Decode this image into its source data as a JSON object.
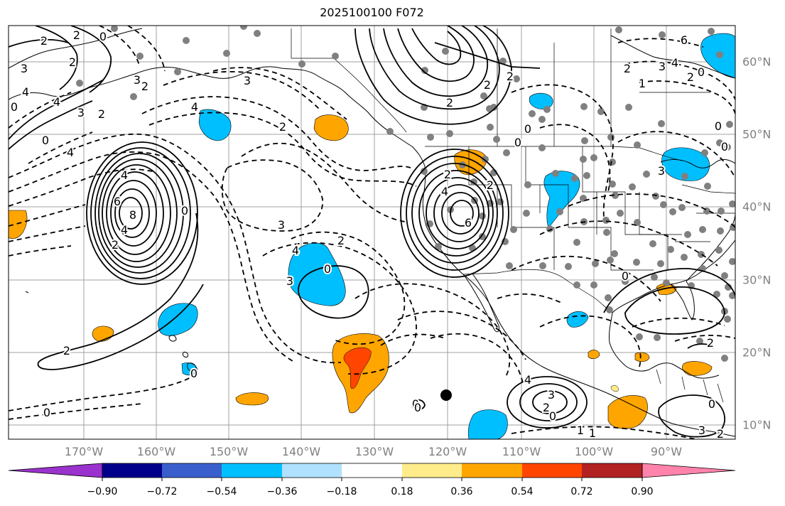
{
  "title": "2025100100 F072",
  "lon_labels": [
    "170°W",
    "160°W",
    "150°W",
    "140°W",
    "130°W",
    "120°W",
    "110°W",
    "100°W",
    "90°W"
  ],
  "lat_labels": [
    "60°N",
    "50°N",
    "40°N",
    "30°N",
    "20°N",
    "10°N"
  ],
  "colorbar": {
    "tick_labels": [
      "−0.90",
      "−0.72",
      "−0.54",
      "−0.36",
      "−0.18",
      "0.18",
      "0.36",
      "0.54",
      "0.72",
      "0.90"
    ],
    "colors": [
      "#9a32cd",
      "#00008b",
      "#3a5fcd",
      "#00bfff",
      "#b0e2ff",
      "#ffffff",
      "#ffec8b",
      "#ffa500",
      "#ff4500",
      "#b22222",
      "#ff83aa"
    ]
  },
  "contour_labels": [
    "2",
    "2",
    "0",
    "2",
    "3",
    "4",
    "0",
    "4",
    "3",
    "4",
    "2",
    "3",
    "4",
    "2",
    "0",
    "4",
    "0",
    "8",
    "6",
    "4",
    "2",
    "3",
    "3",
    "2",
    "2",
    "0",
    "4",
    "3",
    "2",
    "0",
    "2",
    "2",
    "0",
    "2",
    "4",
    "6",
    "2",
    "2",
    "4",
    "3",
    "0",
    "2",
    "3",
    "2",
    "0",
    "2",
    "0",
    "1",
    "1",
    "0",
    "0",
    "0",
    "2",
    "6",
    "4",
    "3",
    "2",
    "1",
    "0",
    "3",
    "0",
    "0",
    "0"
  ],
  "colors": {
    "contour": "#000000",
    "land": "#000000",
    "grid": "#a0a0a0",
    "axis_label": "#808080",
    "station": "#808080",
    "blue_fill": "#00bfff",
    "orange_fill": "#ffa500",
    "red_fill": "#ff4500"
  }
}
